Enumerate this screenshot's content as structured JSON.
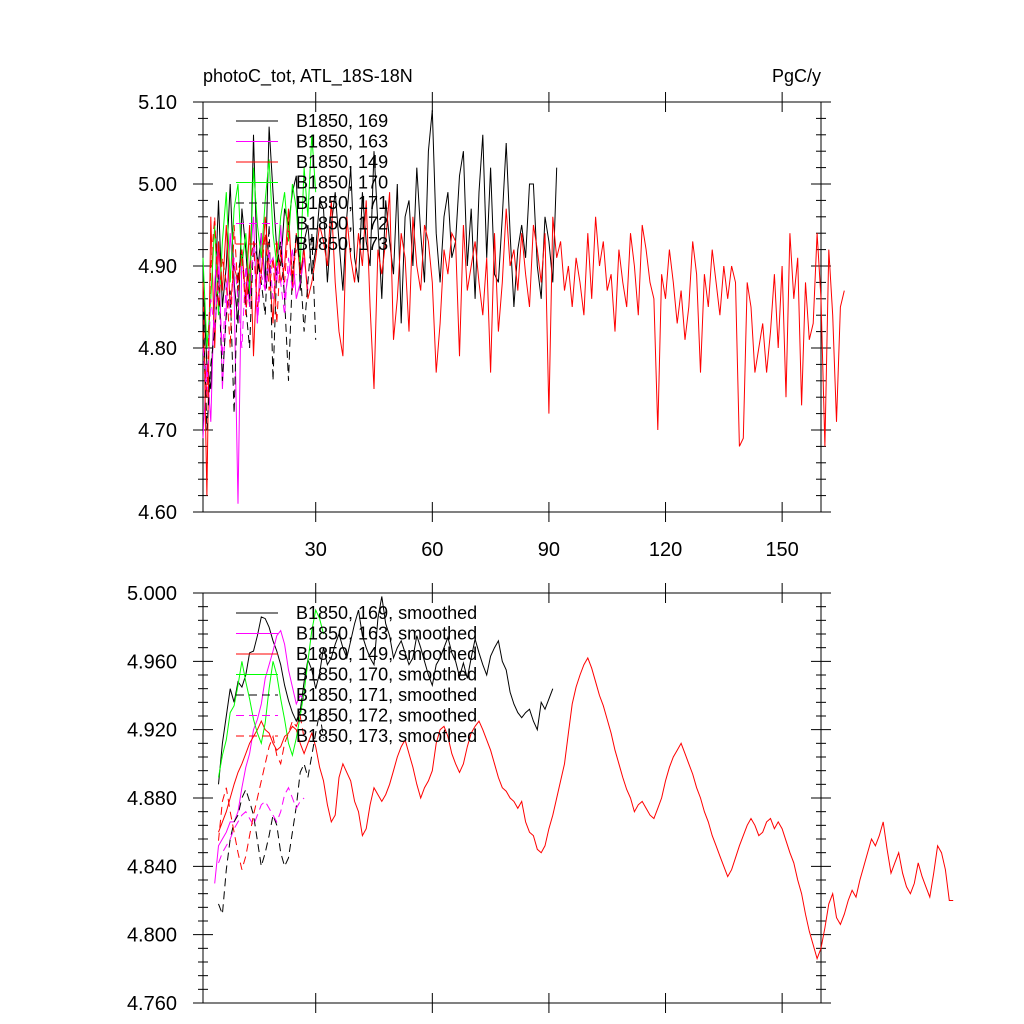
{
  "chart_data": [
    {
      "type": "line",
      "title": "photoC_tot, ATL_18S-18N",
      "units": "PgC/y",
      "xlim": [
        1,
        160
      ],
      "ylim": [
        4.6,
        5.1
      ],
      "xticks": [
        30,
        60,
        90,
        120,
        150
      ],
      "xtick_labels": [
        "30",
        "60",
        "90",
        "120",
        "150"
      ],
      "yticks": [
        4.6,
        4.7,
        4.8,
        4.9,
        5.0,
        5.1
      ],
      "ytick_labels": [
        "4.60",
        "4.70",
        "4.80",
        "4.90",
        "5.00",
        "5.10"
      ],
      "grid": false,
      "legend_position": "top-left",
      "series": [
        {
          "name": "B1850, 169",
          "color": "#000000",
          "dash": "solid",
          "x_start": 1,
          "values": [
            4.88,
            4.78,
            4.75,
            4.86,
            4.98,
            4.85,
            4.9,
            5.0,
            4.88,
            4.83,
            4.97,
            4.92,
            4.85,
            5.06,
            4.89,
            4.94,
            4.88,
            5.07,
            4.99,
            4.92,
            4.9,
            4.97,
            4.95,
            4.99,
            5.01,
            4.87,
            4.93,
            4.95,
            4.89,
            4.92,
            4.98,
            4.97,
            4.88,
            4.95,
            4.99,
            4.93,
            4.87,
            4.96,
            5.02,
            4.91,
            4.88,
            4.99,
            4.93,
            4.9,
            5.04,
            4.95,
            4.86,
            4.98,
            4.93,
            4.89,
            5.0,
            4.83,
            4.96,
            4.98,
            4.9,
            5.02,
            4.94,
            4.88,
            5.04,
            5.09,
            4.94,
            4.88,
            4.96,
            4.99,
            4.91,
            4.93,
            5.01,
            5.04,
            4.9,
            4.97,
            4.86,
            4.99,
            5.06,
            4.91,
            5.02,
            4.89,
            4.88,
            4.96,
            5.05,
            4.94,
            4.85,
            4.92,
            4.95,
            4.91,
            5.0,
            5.0,
            4.9,
            4.86,
            4.96,
            4.93,
            4.88,
            5.02
          ]
        },
        {
          "name": "B1850, 163",
          "color": "#ff00ff",
          "dash": "solid",
          "x_start": 1,
          "values": [
            4.69,
            4.78,
            4.71,
            4.88,
            4.93,
            4.75,
            4.85,
            4.94,
            4.87,
            4.61,
            4.92,
            4.85,
            4.9,
            4.96,
            4.83,
            4.94,
            4.87,
            4.9,
            4.91,
            4.88,
            4.95,
            4.86,
            4.89,
            4.92,
            4.86,
            4.88,
            4.91,
            4.87
          ]
        },
        {
          "name": "B1850, 149",
          "color": "#ff0000",
          "dash": "solid",
          "x_start": 1,
          "values": [
            4.88,
            4.62,
            4.96,
            4.8,
            4.93,
            4.87,
            4.95,
            4.85,
            4.9,
            4.88,
            4.92,
            4.86,
            4.95,
            4.79,
            4.91,
            4.89,
            4.96,
            4.9,
            4.83,
            4.93,
            4.88,
            4.9,
            4.97,
            4.87,
            4.94,
            4.89,
            4.92,
            4.86,
            4.88,
            4.91,
            4.95,
            4.93,
            4.9,
            4.98,
            4.88,
            4.82,
            4.79,
            4.96,
            4.91,
            4.88,
            4.94,
            4.9,
            4.98,
            4.85,
            4.75,
            4.92,
            4.89,
            4.93,
            4.99,
            4.81,
            4.86,
            4.94,
            4.91,
            4.82,
            4.96,
            4.9,
            4.87,
            4.95,
            4.93,
            4.88,
            4.77,
            4.83,
            4.92,
            4.89,
            4.94,
            4.93,
            4.79,
            4.95,
            4.87,
            4.9,
            4.93,
            4.88,
            4.84,
            4.91,
            4.77,
            4.94,
            4.82,
            4.88,
            4.97,
            4.9,
            4.92,
            4.87,
            4.94,
            4.89,
            4.85,
            4.95,
            4.92,
            4.88,
            4.94,
            4.72,
            4.96,
            4.91,
            4.93,
            4.87,
            4.9,
            4.85,
            4.91,
            4.88,
            4.84,
            4.94,
            4.86,
            4.96,
            4.9,
            4.93,
            4.87,
            4.89,
            4.82,
            4.92,
            4.88,
            4.85,
            4.94,
            4.9,
            4.84,
            4.95,
            4.92,
            4.88,
            4.86,
            4.7,
            4.89,
            4.86,
            4.92,
            4.88,
            4.83,
            4.87,
            4.81,
            4.85,
            4.93,
            4.89,
            4.77,
            4.89,
            4.85,
            4.92,
            4.88,
            4.84,
            4.9,
            4.86,
            4.9,
            4.88,
            4.68,
            4.69,
            4.88,
            4.85,
            4.77,
            4.8,
            4.83,
            4.77,
            4.82,
            4.89,
            4.8,
            4.9,
            4.74,
            4.94,
            4.86,
            4.91,
            4.73,
            4.88,
            4.81,
            4.83,
            4.94,
            4.86,
            4.68,
            4.92,
            4.84,
            4.71,
            4.85,
            4.87
          ]
        },
        {
          "name": "B1850, 170",
          "color": "#00ff00",
          "dash": "solid",
          "x_start": 1,
          "values": [
            4.91,
            4.8,
            4.86,
            4.95,
            4.84,
            4.93,
            4.99,
            4.88,
            4.97,
            5.0,
            4.9,
            4.94,
            4.87,
            5.02,
            4.95,
            4.91,
            4.98,
            5.03,
            4.94,
            4.9,
            4.96,
            4.99,
            4.93,
            5.0,
            4.97,
            4.9,
            5.02,
            4.96,
            5.06,
            4.99
          ]
        },
        {
          "name": "B1850, 171",
          "color": "#000000",
          "dash": "dash",
          "x_start": 1,
          "values": [
            4.86,
            4.7,
            4.78,
            4.82,
            4.89,
            4.76,
            4.84,
            4.87,
            4.72,
            4.89,
            4.92,
            4.85,
            4.8,
            4.93,
            4.91,
            4.88,
            4.84,
            4.95,
            4.76,
            4.9,
            4.93,
            4.86,
            4.76,
            4.89,
            4.94,
            4.9,
            4.82,
            4.88,
            4.94,
            4.81
          ]
        },
        {
          "name": "B1850, 172",
          "color": "#ff00ff",
          "dash": "dash",
          "x_start": 1,
          "values": [
            4.8,
            4.74,
            4.86,
            4.82,
            4.9,
            4.79,
            4.88,
            4.84,
            4.91,
            4.86,
            4.8,
            4.9,
            4.85,
            4.93,
            4.83,
            4.89,
            4.87,
            4.92,
            4.86,
            4.9,
            4.88,
            4.84,
            4.91,
            4.87,
            4.89
          ]
        },
        {
          "name": "B1850, 173",
          "color": "#ff0000",
          "dash": "dash",
          "x_start": 1,
          "values": [
            4.82,
            4.74,
            4.9,
            4.96,
            4.85,
            4.91,
            4.88,
            4.8,
            4.95,
            4.87,
            4.92,
            4.84,
            4.9,
            4.93,
            4.85,
            4.89,
            4.94,
            4.87,
            4.91,
            4.83,
            4.92,
            4.88,
            4.95,
            4.89,
            4.92
          ]
        }
      ]
    },
    {
      "type": "line",
      "xlim": [
        1,
        160
      ],
      "ylim": [
        4.76,
        5.0
      ],
      "xticks": [
        30,
        60,
        90,
        120,
        150
      ],
      "xtick_labels": [],
      "yticks": [
        4.76,
        4.8,
        4.84,
        4.88,
        4.92,
        4.96,
        5.0
      ],
      "ytick_labels": [
        "4.760",
        "4.800",
        "4.840",
        "4.880",
        "4.920",
        "4.960",
        "5.000"
      ],
      "grid": false,
      "legend_position": "top-left",
      "series": [
        {
          "name": "B1850, 169, smoothed",
          "color": "#000000",
          "dash": "solid",
          "x_start": 5,
          "values": [
            4.888,
            4.912,
            4.928,
            4.944,
            4.936,
            4.948,
            4.945,
            4.952,
            4.965,
            4.966,
            4.975,
            4.986,
            4.985,
            4.98,
            4.972,
            4.966,
            4.958,
            4.946,
            4.937,
            4.93,
            4.925,
            4.931,
            4.948,
            4.961,
            4.955,
            4.944,
            4.953,
            4.968,
            4.958,
            4.962,
            4.97,
            4.976,
            4.968,
            4.962,
            4.972,
            4.982,
            4.99,
            4.975,
            4.968,
            4.962,
            4.958,
            4.985,
            4.998,
            4.982,
            4.975,
            4.962,
            4.968,
            4.972,
            4.965,
            4.958,
            4.962,
            4.975,
            4.968,
            4.96,
            4.952,
            4.946,
            4.958,
            4.962,
            4.968,
            4.974,
            4.965,
            4.96,
            4.951,
            4.959,
            4.95,
            4.962,
            4.973,
            4.965,
            4.958,
            4.952,
            4.963,
            4.968,
            4.972,
            4.96,
            4.955,
            4.942,
            4.935,
            4.93,
            4.927,
            4.93,
            4.932,
            4.925,
            4.92,
            4.936,
            4.932,
            4.938,
            4.944
          ]
        },
        {
          "name": "B1850, 163, smoothed",
          "color": "#ff00ff",
          "dash": "solid",
          "x_start": 4,
          "values": [
            4.83,
            4.852,
            4.856,
            4.86,
            4.866,
            4.866,
            4.872,
            4.886,
            4.898,
            4.906,
            4.92,
            4.926,
            4.935,
            4.95,
            4.958,
            4.966,
            4.975,
            4.978,
            4.97,
            4.955,
            4.945,
            4.935,
            4.94,
            4.938
          ]
        },
        {
          "name": "B1850, 149, smoothed",
          "color": "#ff0000",
          "dash": "solid",
          "x_start": 5,
          "values": [
            4.86,
            4.866,
            4.872,
            4.88,
            4.888,
            4.895,
            4.9,
            4.906,
            4.912,
            4.916,
            4.92,
            4.925,
            4.92,
            4.918,
            4.912,
            4.908,
            4.91,
            4.916,
            4.918,
            4.922,
            4.92,
            4.912,
            4.906,
            4.912,
            4.918,
            4.91,
            4.898,
            4.89,
            4.876,
            4.866,
            4.87,
            4.892,
            4.9,
            4.895,
            4.89,
            4.878,
            4.872,
            4.858,
            4.862,
            4.876,
            4.886,
            4.882,
            4.878,
            4.882,
            4.888,
            4.896,
            4.904,
            4.91,
            4.914,
            4.906,
            4.898,
            4.888,
            4.88,
            4.886,
            4.89,
            4.896,
            4.912,
            4.92,
            4.922,
            4.916,
            4.906,
            4.9,
            4.895,
            4.9,
            4.91,
            4.918,
            4.922,
            4.925,
            4.92,
            4.914,
            4.908,
            4.9,
            4.892,
            4.886,
            4.884,
            4.88,
            4.878,
            4.874,
            4.878,
            4.866,
            4.86,
            4.858,
            4.85,
            4.848,
            4.852,
            4.862,
            4.87,
            4.88,
            4.89,
            4.9,
            4.918,
            4.935,
            4.945,
            4.952,
            4.958,
            4.962,
            4.956,
            4.948,
            4.94,
            4.934,
            4.926,
            4.918,
            4.908,
            4.9,
            4.892,
            4.885,
            4.88,
            4.872,
            4.876,
            4.878,
            4.874,
            4.87,
            4.868,
            4.874,
            4.88,
            4.89,
            4.898,
            4.904,
            4.908,
            4.912,
            4.906,
            4.9,
            4.894,
            4.886,
            4.88,
            4.872,
            4.866,
            4.858,
            4.852,
            4.846,
            4.84,
            4.834,
            4.838,
            4.845,
            4.852,
            4.858,
            4.864,
            4.868,
            4.864,
            4.858,
            4.86,
            4.866,
            4.868,
            4.862,
            4.866,
            4.862,
            4.855,
            4.848,
            4.842,
            4.832,
            4.824,
            4.812,
            4.802,
            4.794,
            4.786,
            4.792,
            4.804,
            4.818,
            4.824,
            4.81,
            4.806,
            4.812,
            4.82,
            4.826,
            4.822,
            4.832,
            4.84,
            4.848,
            4.856,
            4.852,
            4.858,
            4.866,
            4.85,
            4.836,
            4.842,
            4.848,
            4.836,
            4.828,
            4.824,
            4.83,
            4.842,
            4.834,
            4.828,
            4.822,
            4.836,
            4.852,
            4.848,
            4.838,
            4.82,
            4.82
          ]
        },
        {
          "name": "B1850, 170, smoothed",
          "color": "#00ff00",
          "dash": "solid",
          "x_start": 5,
          "values": [
            4.892,
            4.905,
            4.914,
            4.93,
            4.934,
            4.946,
            4.96,
            4.948,
            4.938,
            4.926,
            4.918,
            4.912,
            4.924,
            4.944,
            4.96,
            4.952,
            4.938,
            4.926,
            4.912,
            4.905,
            4.915,
            4.928,
            4.942,
            4.96,
            4.978,
            4.99,
            4.985,
            4.976
          ]
        },
        {
          "name": "B1850, 171, smoothed",
          "color": "#000000",
          "dash": "dash",
          "x_start": 5,
          "values": [
            4.818,
            4.812,
            4.838,
            4.856,
            4.866,
            4.87,
            4.88,
            4.885,
            4.878,
            4.87,
            4.855,
            4.84,
            4.848,
            4.858,
            4.87,
            4.864,
            4.848,
            4.84,
            4.845,
            4.86,
            4.875,
            4.895,
            4.9,
            4.892,
            4.905,
            4.918,
            4.93,
            4.915
          ]
        },
        {
          "name": "B1850, 172, smoothed",
          "color": "#ff00ff",
          "dash": "dash",
          "x_start": 5,
          "values": [
            4.842,
            4.848,
            4.852,
            4.856,
            4.862,
            4.866,
            4.87,
            4.872,
            4.868,
            4.864,
            4.87,
            4.876,
            4.878,
            4.874,
            4.87,
            4.866,
            4.872,
            4.882,
            4.886,
            4.88,
            4.874,
            4.878,
            4.88
          ]
        },
        {
          "name": "B1850, 173, smoothed",
          "color": "#ff0000",
          "dash": "dash",
          "x_start": 5,
          "values": [
            4.855,
            4.878,
            4.886,
            4.872,
            4.86,
            4.848,
            4.838,
            4.846,
            4.858,
            4.87,
            4.88,
            4.89,
            4.9,
            4.91,
            4.916,
            4.905,
            4.9,
            4.912,
            4.918,
            4.925,
            4.922,
            4.928,
            4.915
          ]
        }
      ]
    }
  ]
}
